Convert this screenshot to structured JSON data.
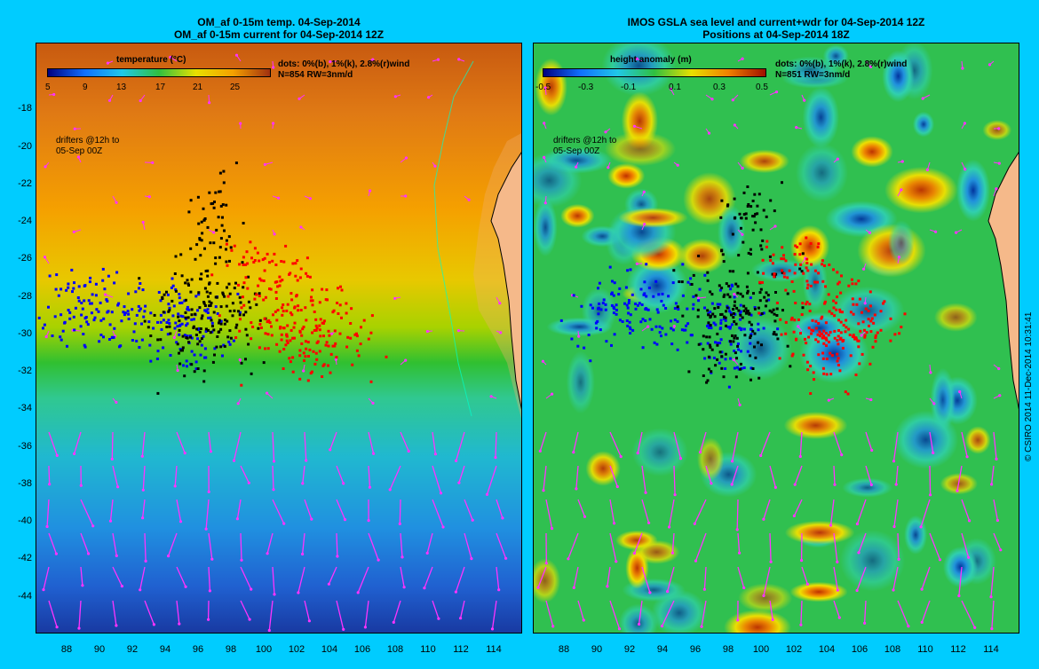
{
  "left": {
    "title_line1": "OM_af 0-15m temp. 04-Sep-2014",
    "title_line2": "OM_af 0-15m current for 04-Sep-2014 12Z",
    "colorbar_title": "temperature (°C)",
    "colorbar_ticks": [
      "5",
      "9",
      "13",
      "17",
      "21",
      "25"
    ],
    "dots_text": "dots: 0%(b), 1%(k), 2.8%(r)wind",
    "n_text": "N=854 RW=3nm/d",
    "drifters_line1": "drifters @12h to",
    "drifters_line2": "05-Sep 00Z"
  },
  "right": {
    "title_line1": "IMOS GSLA sea level and current+wdr for 04-Sep-2014 12Z",
    "title_line2": "Positions at 04-Sep-2014 18Z",
    "colorbar_title": "height anomaly (m)",
    "colorbar_ticks": [
      "-0.5",
      "-0.3",
      "-0.1",
      "0.1",
      "0.3",
      "0.5"
    ],
    "dots_text": "dots: 0%(b), 1%(k), 2.8%(r)wind",
    "n_text": "N=851 RW=3nm/d",
    "drifters_line1": "drifters @12h to",
    "drifters_line2": "05-Sep 00Z"
  },
  "y_ticks": [
    "-18",
    "-20",
    "-22",
    "-24",
    "-26",
    "-28",
    "-30",
    "-32",
    "-34",
    "-36",
    "-38",
    "-40",
    "-42",
    "-44"
  ],
  "x_ticks": [
    "88",
    "90",
    "92",
    "94",
    "96",
    "98",
    "100",
    "102",
    "104",
    "106",
    "108",
    "110",
    "112",
    "114"
  ],
  "copyright": "© CSIRO 2014   11-Dec-2014 10:31:41",
  "colors": {
    "background": "#00ccff",
    "land": "#f5b98a",
    "arrows": "#ff33ff",
    "drifter_blue": "#0000ff",
    "drifter_black": "#000000",
    "drifter_red": "#ff0000"
  }
}
